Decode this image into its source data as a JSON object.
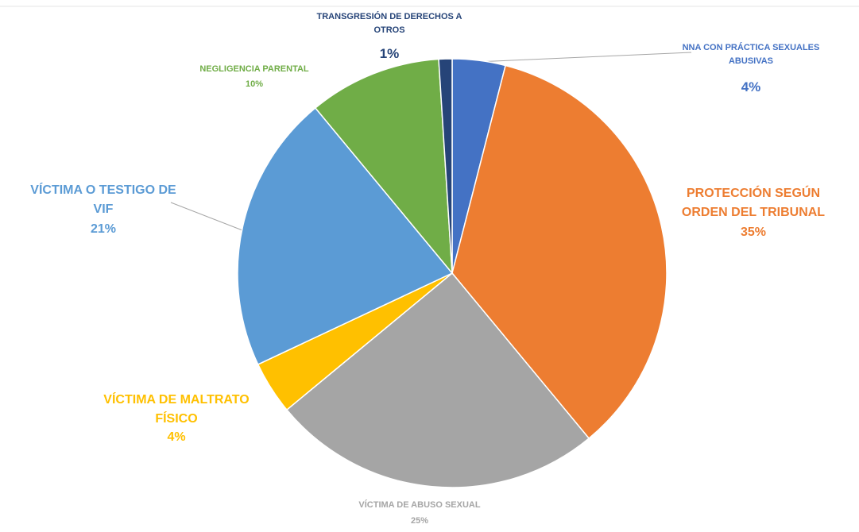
{
  "chart_data": {
    "type": "pie",
    "categories": [
      "NNA CON PRÁCTICA SEXUALES ABUSIVAS",
      "PROTECCIÓN SEGÚN ORDEN DEL TRIBUNAL",
      "VÍCTIMA DE ABUSO SEXUAL",
      "VÍCTIMA DE MALTRATO FÍSICO",
      "VÍCTIMA O TESTIGO DE VIF",
      "NEGLIGENCIA PARENTAL",
      "TRANSGRESIÓN DE DERECHOS A OTROS"
    ],
    "values": [
      4,
      35,
      25,
      4,
      21,
      10,
      1
    ],
    "value_labels": [
      "4%",
      "35%",
      "25%",
      "4%",
      "21%",
      "10%",
      "1%"
    ],
    "colors": [
      "#4472c4",
      "#ed7d31",
      "#a5a5a5",
      "#ffc000",
      "#5b9bd5",
      "#70ad47",
      "#264478"
    ]
  }
}
